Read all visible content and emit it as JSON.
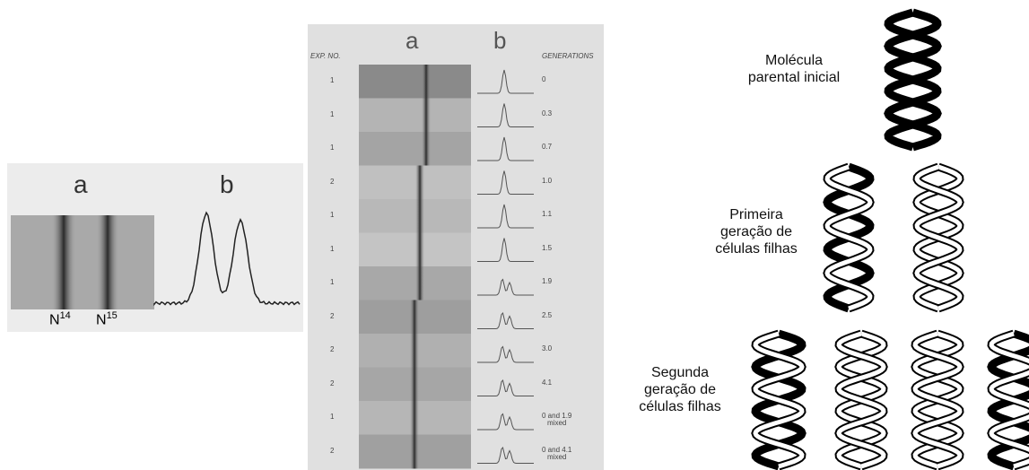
{
  "left_panel": {
    "label_a": "a",
    "label_b": "b",
    "n14": {
      "base": "N",
      "sup": "14"
    },
    "n15": {
      "base": "N",
      "sup": "15"
    }
  },
  "middle_panel": {
    "col_exp": "EXP. NO.",
    "label_a": "a",
    "label_b": "b",
    "col_generations": "GENERATIONS",
    "rows": [
      {
        "exp": "1",
        "gen": [
          "0"
        ]
      },
      {
        "exp": "1",
        "gen": [
          "0.3"
        ]
      },
      {
        "exp": "1",
        "gen": [
          "0.7"
        ]
      },
      {
        "exp": "2",
        "gen": [
          "1.0"
        ]
      },
      {
        "exp": "1",
        "gen": [
          "1.1"
        ]
      },
      {
        "exp": "1",
        "gen": [
          "1.5"
        ]
      },
      {
        "exp": "1",
        "gen": [
          "1.9"
        ]
      },
      {
        "exp": "2",
        "gen": [
          "2.5"
        ]
      },
      {
        "exp": "2",
        "gen": [
          "3.0"
        ]
      },
      {
        "exp": "2",
        "gen": [
          "4.1"
        ]
      },
      {
        "exp": "1",
        "gen": [
          "0 and 1.9",
          "mixed"
        ]
      },
      {
        "exp": "2",
        "gen": [
          "0 and 4.1",
          "mixed"
        ]
      }
    ]
  },
  "right_panel": {
    "parent_label": [
      "Molécula",
      "parental inicial"
    ],
    "first_gen_label": [
      "Primeira",
      "geração de",
      "células filhas"
    ],
    "second_gen_label": [
      "Segunda",
      "geração de",
      "células filhas"
    ]
  }
}
